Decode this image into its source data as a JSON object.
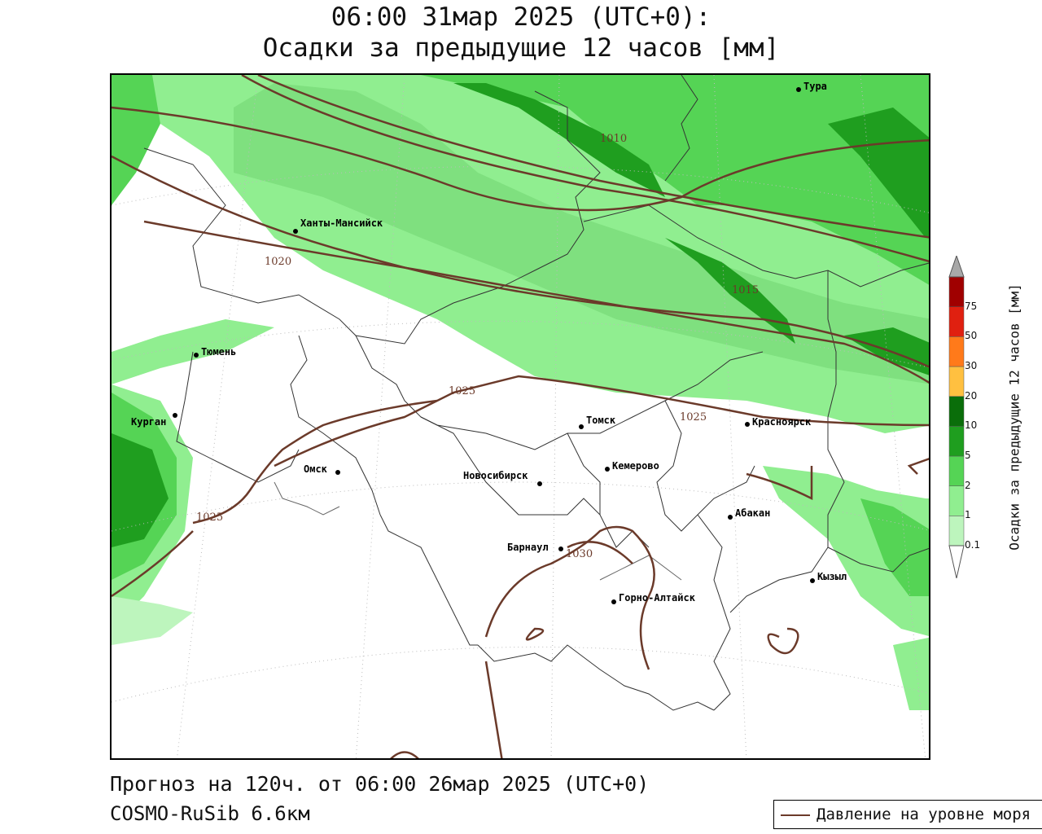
{
  "title": {
    "line1": "06:00 31мар 2025 (UTC+0):",
    "line2": "Осадки за предыдущие 12 часов [мм]"
  },
  "footer": {
    "forecast": "Прогноз на 120ч. от 06:00 26мар 2025 (UTC+0)",
    "model": "COSMO-RuSib 6.6км"
  },
  "legend": {
    "pressure_label": "Давление на уровне моря",
    "pressure_color": "#6b3a2a"
  },
  "colorbar": {
    "title": "Осадки за предыдущие 12 часов [мм]",
    "ticks": [
      "0.1",
      "1",
      "2",
      "5",
      "10",
      "20",
      "30",
      "50",
      "75"
    ],
    "colors": [
      "#bdf5bd",
      "#90ee90",
      "#55d455",
      "#1f9e1f",
      "#0a6e0a",
      "#ffc040",
      "#ff7a1a",
      "#e02010",
      "#a00000",
      "#a8a8a8"
    ]
  },
  "cities": [
    {
      "name": "Тура"
    },
    {
      "name": "Ханты-Мансийск"
    },
    {
      "name": "Тюмень"
    },
    {
      "name": "Курган"
    },
    {
      "name": "Омск"
    },
    {
      "name": "Новосибирск"
    },
    {
      "name": "Томск"
    },
    {
      "name": "Кемерово"
    },
    {
      "name": "Красноярск"
    },
    {
      "name": "Абакан"
    },
    {
      "name": "Барнаул"
    },
    {
      "name": "Горно-Алтайск"
    },
    {
      "name": "Кызыл"
    }
  ],
  "isobars": [
    "1010",
    "1015",
    "1020",
    "1025",
    "1025",
    "1025",
    "1030"
  ]
}
